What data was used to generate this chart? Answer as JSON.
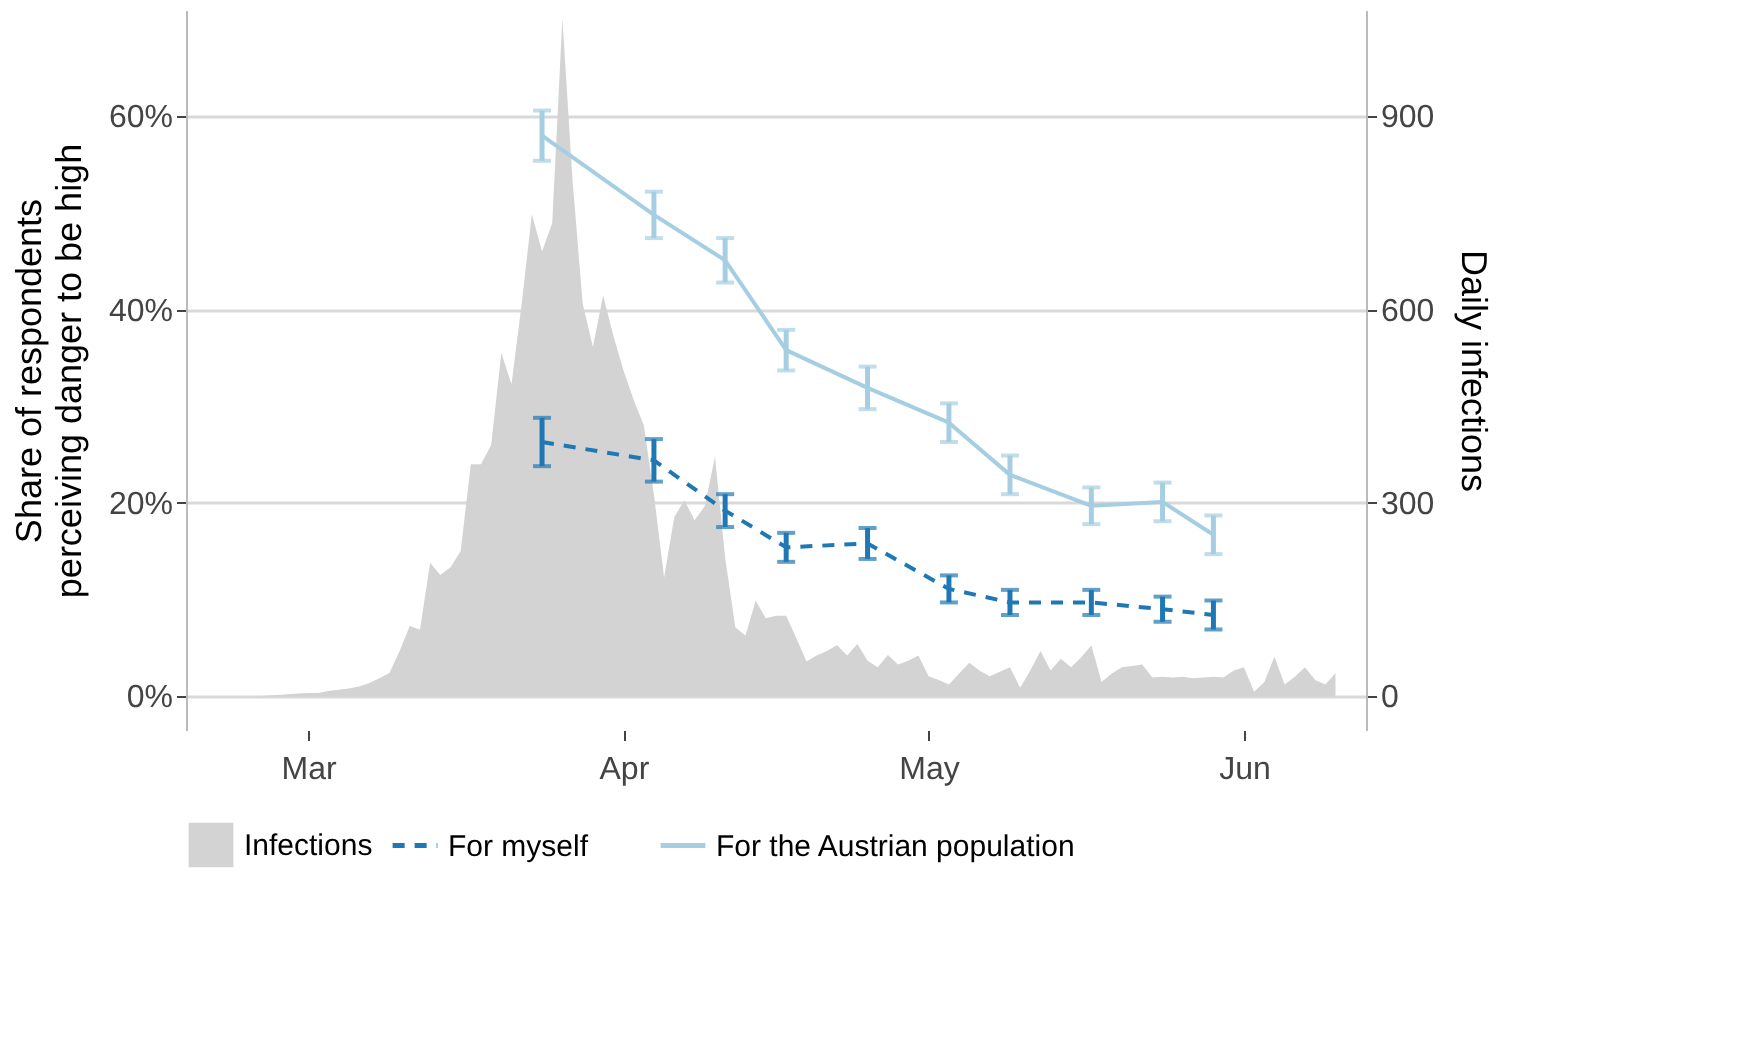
{
  "chart_data": {
    "type": "line",
    "ylabel": "Share of respondents\nperceiving danger to be high",
    "y2label": "Daily infections",
    "x": [
      "--03-24",
      "--04-04",
      "--04-11",
      "--04-17",
      "--04-25",
      "--05-03",
      "--05-09",
      "--05-17",
      "--05-24",
      "--05-29"
    ],
    "series": [
      {
        "name": "For myself",
        "color": "#1f78b4",
        "line_style": "dashed",
        "values": [
          26.3,
          24.4,
          19.2,
          15.4,
          15.8,
          11.1,
          9.7,
          9.7,
          9.0,
          8.4
        ],
        "errors": [
          2.5,
          2.2,
          1.7,
          1.5,
          1.6,
          1.4,
          1.3,
          1.3,
          1.3,
          1.5
        ]
      },
      {
        "name": "For the Austrian population",
        "color": "#a6cee3",
        "line_style": "solid",
        "values": [
          58.0,
          49.8,
          45.1,
          35.8,
          31.9,
          28.3,
          22.9,
          19.7,
          20.1,
          16.7
        ],
        "errors": [
          2.6,
          2.4,
          2.3,
          2.1,
          2.2,
          2.0,
          2.0,
          1.9,
          2.0,
          2.0
        ]
      },
      {
        "name": "Infections",
        "type": "area",
        "axis": "y2",
        "color": "#d3d3d3",
        "x": [
          "--02-20",
          "--02-21",
          "--02-22",
          "--02-23",
          "--02-24",
          "--02-25",
          "--02-26",
          "--02-27",
          "--02-28",
          "--02-29",
          "--03-01",
          "--03-02",
          "--03-03",
          "--03-04",
          "--03-05",
          "--03-06",
          "--03-07",
          "--03-08",
          "--03-09",
          "--03-10",
          "--03-11",
          "--03-12",
          "--03-13",
          "--03-14",
          "--03-15",
          "--03-16",
          "--03-17",
          "--03-18",
          "--03-19",
          "--03-20",
          "--03-21",
          "--03-22",
          "--03-23",
          "--03-24",
          "--03-25",
          "--03-26",
          "--03-27",
          "--03-28",
          "--03-29",
          "--03-30",
          "--03-31",
          "--04-01",
          "--04-02",
          "--04-03",
          "--04-04",
          "--04-05",
          "--04-06",
          "--04-07",
          "--04-08",
          "--04-09",
          "--04-10",
          "--04-11",
          "--04-12",
          "--04-13",
          "--04-14",
          "--04-15",
          "--04-16",
          "--04-17",
          "--04-18",
          "--04-19",
          "--04-20",
          "--04-21",
          "--04-22",
          "--04-23",
          "--04-24",
          "--04-25",
          "--04-26",
          "--04-27",
          "--04-28",
          "--04-29",
          "--04-30",
          "--05-01",
          "--05-02",
          "--05-03",
          "--05-04",
          "--05-05",
          "--05-06",
          "--05-07",
          "--05-08",
          "--05-09",
          "--05-10",
          "--05-11",
          "--05-12",
          "--05-13",
          "--05-14",
          "--05-15",
          "--05-16",
          "--05-17",
          "--05-18",
          "--05-19",
          "--05-20",
          "--05-21",
          "--05-22",
          "--05-23",
          "--05-24",
          "--05-25",
          "--05-26",
          "--05-27",
          "--05-28",
          "--05-29",
          "--05-30",
          "--05-31",
          "--06-01",
          "--06-02",
          "--06-03",
          "--06-04",
          "--06-05",
          "--06-06",
          "--06-07",
          "--06-08",
          "--06-09",
          "--06-10"
        ],
        "values": [
          0,
          0,
          0,
          0,
          0,
          0,
          1,
          2,
          3,
          4,
          5,
          5,
          8,
          10,
          12,
          15,
          20,
          28,
          36,
          70,
          109,
          103,
          207,
          188,
          200,
          225,
          360,
          360,
          390,
          533,
          484,
          609,
          748,
          690,
          734,
          1052,
          800,
          609,
          542,
          622,
          560,
          506,
          460,
          421,
          313,
          184,
          278,
          304,
          273,
          295,
          372,
          215,
          107,
          94,
          148,
          121,
          125,
          125,
          90,
          54,
          63,
          70,
          79,
          63,
          81,
          55,
          45,
          64,
          49,
          55,
          63,
          31,
          25,
          18,
          35,
          52,
          40,
          31,
          38,
          45,
          13,
          40,
          70,
          40,
          58,
          45,
          60,
          79,
          22,
          35,
          45,
          47,
          49,
          29,
          30,
          29,
          30,
          28,
          29,
          30,
          29,
          40,
          45,
          7,
          22,
          61,
          18,
          30,
          45,
          25,
          18,
          36
        ]
      }
    ],
    "xlim": [
      "--02-18",
      "--06-13"
    ],
    "xticks": [
      {
        "value": "--03-01",
        "label": "Mar"
      },
      {
        "value": "--04-01",
        "label": "Apr"
      },
      {
        "value": "--05-01",
        "label": "May"
      },
      {
        "value": "--06-01",
        "label": "Jun"
      }
    ],
    "ylim": [
      -3.5,
      71
    ],
    "yticks": [
      {
        "value": 0,
        "label": "0%"
      },
      {
        "value": 20,
        "label": "20%"
      },
      {
        "value": 40,
        "label": "40%"
      },
      {
        "value": 60,
        "label": "60%"
      }
    ],
    "y2lim": [
      -52.5,
      1065
    ],
    "y2ticks": [
      0,
      300,
      600,
      900
    ],
    "grid": "y",
    "legend": "bottom"
  }
}
